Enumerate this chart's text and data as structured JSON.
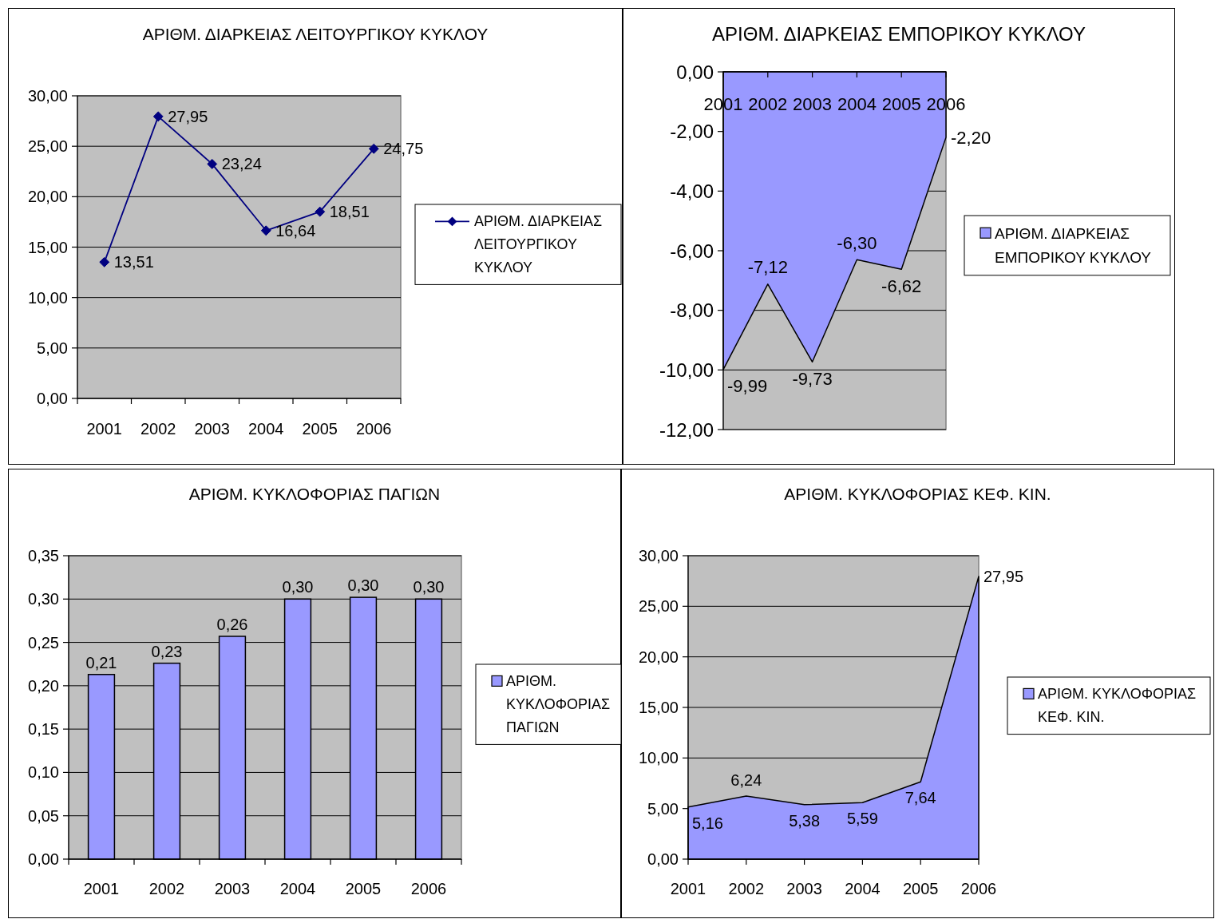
{
  "chart_data": [
    {
      "type": "line",
      "title": "ΑΡΙΘΜ. ΔΙΑΡΚΕΙΑΣ ΛΕΙΤΟΥΡΓΙΚΟΥ ΚΥΚΛΟΥ",
      "categories": [
        "2001",
        "2002",
        "2003",
        "2004",
        "2005",
        "2006"
      ],
      "series": [
        {
          "name": "ΑΡΙΘΜ. ΔΙΑΡΚΕΙΑΣ ΛΕΙΤΟΥΡΓΙΚΟΥ ΚΥΚΛΟΥ",
          "color": "#000080",
          "values": [
            13.51,
            27.95,
            23.24,
            16.64,
            18.51,
            24.75
          ],
          "value_labels": [
            "13,51",
            "27,95",
            "23,24",
            "16,64",
            "18,51",
            "24,75"
          ]
        }
      ],
      "ylim": [
        0,
        30
      ],
      "yticks": [
        {
          "value": 0,
          "label": "0,00"
        },
        {
          "value": 5,
          "label": "5,00"
        },
        {
          "value": 10,
          "label": "10,00"
        },
        {
          "value": 15,
          "label": "15,00"
        },
        {
          "value": 20,
          "label": "20,00"
        },
        {
          "value": 25,
          "label": "25,00"
        },
        {
          "value": 30,
          "label": "30,00"
        }
      ],
      "grid": "y",
      "legend": "right",
      "marker": "diamond"
    },
    {
      "type": "area",
      "title": "ΑΡΙΘΜ. ΔΙΑΡΚΕΙΑΣ ΕΜΠΟΡΙΚΟΥ ΚΥΚΛΟΥ",
      "categories": [
        "2001",
        "2002",
        "2003",
        "2004",
        "2005",
        "2006"
      ],
      "series": [
        {
          "name": "ΑΡΙΘΜ. ΔΙΑΡΚΕΙΑΣ ΕΜΠΟΡΙΚΟΥ ΚΥΚΛΟΥ",
          "color": "#9999ff",
          "values": [
            -9.99,
            -7.12,
            -9.73,
            -6.3,
            -6.62,
            -2.2
          ],
          "value_labels": [
            "-9,99",
            "-7,12",
            "-9,73",
            "-6,30",
            "-6,62",
            "-2,20"
          ]
        }
      ],
      "ylim": [
        -12,
        0
      ],
      "yticks": [
        {
          "value": -12,
          "label": "-12,00"
        },
        {
          "value": -10,
          "label": "-10,00"
        },
        {
          "value": -8,
          "label": "-8,00"
        },
        {
          "value": -6,
          "label": "-6,00"
        },
        {
          "value": -4,
          "label": "-4,00"
        },
        {
          "value": -2,
          "label": "-2,00"
        },
        {
          "value": 0,
          "label": "0,00"
        }
      ],
      "grid": "y",
      "legend": "right"
    },
    {
      "type": "bar",
      "title": "ΑΡΙΘΜ. ΚΥΚΛΟΦΟΡΙΑΣ ΠΑΓΙΩΝ",
      "categories": [
        "2001",
        "2002",
        "2003",
        "2004",
        "2005",
        "2006"
      ],
      "series": [
        {
          "name": "ΑΡΙΘΜ. ΚΥΚΛΟΦΟΡΙΑΣ ΠΑΓΙΩΝ",
          "color": "#9999ff",
          "values": [
            0.213,
            0.226,
            0.257,
            0.3,
            0.302,
            0.3
          ],
          "value_labels": [
            "0,21",
            "0,23",
            "0,26",
            "0,30",
            "0,30",
            "0,30"
          ]
        }
      ],
      "ylim": [
        0,
        0.35
      ],
      "yticks": [
        {
          "value": 0,
          "label": "0,00"
        },
        {
          "value": 0.05,
          "label": "0,05"
        },
        {
          "value": 0.1,
          "label": "0,10"
        },
        {
          "value": 0.15,
          "label": "0,15"
        },
        {
          "value": 0.2,
          "label": "0,20"
        },
        {
          "value": 0.25,
          "label": "0,25"
        },
        {
          "value": 0.3,
          "label": "0,30"
        },
        {
          "value": 0.35,
          "label": "0,35"
        }
      ],
      "grid": "y",
      "legend": "right"
    },
    {
      "type": "area",
      "title": "ΑΡΙΘΜ. ΚΥΚΛΟΦΟΡΙΑΣ ΚΕΦ. ΚΙΝ.",
      "categories": [
        "2001",
        "2002",
        "2003",
        "2004",
        "2005",
        "2006"
      ],
      "series": [
        {
          "name": "ΑΡΙΘΜ. ΚΥΚΛΟΦΟΡΙΑΣ ΚΕΦ. ΚΙΝ.",
          "color": "#9999ff",
          "values": [
            5.16,
            6.24,
            5.38,
            5.59,
            7.64,
            27.95
          ],
          "value_labels": [
            "5,16",
            "6,24",
            "5,38",
            "5,59",
            "7,64",
            "27,95"
          ]
        }
      ],
      "ylim": [
        0,
        30
      ],
      "yticks": [
        {
          "value": 0,
          "label": "0,00"
        },
        {
          "value": 5,
          "label": "5,00"
        },
        {
          "value": 10,
          "label": "10,00"
        },
        {
          "value": 15,
          "label": "15,00"
        },
        {
          "value": 20,
          "label": "20,00"
        },
        {
          "value": 25,
          "label": "25,00"
        },
        {
          "value": 30,
          "label": "30,00"
        }
      ],
      "grid": "y",
      "legend": "right"
    }
  ]
}
